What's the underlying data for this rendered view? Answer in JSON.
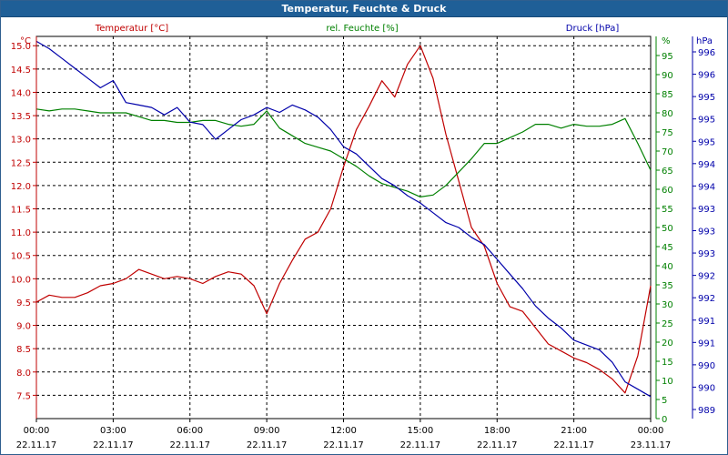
{
  "window": {
    "title": "Temperatur, Feuchte & Druck"
  },
  "chart_data": {
    "type": "line",
    "title": "Temperatur, Feuchte & Druck",
    "grid": true,
    "x": {
      "range": [
        "00:00",
        "24:00"
      ],
      "ticks": [
        {
          "time": "00:00",
          "date": "22.11.17"
        },
        {
          "time": "03:00",
          "date": "22.11.17"
        },
        {
          "time": "06:00",
          "date": "22.11.17"
        },
        {
          "time": "09:00",
          "date": "22.11.17"
        },
        {
          "time": "12:00",
          "date": "22.11.17"
        },
        {
          "time": "15:00",
          "date": "22.11.17"
        },
        {
          "time": "18:00",
          "date": "22.11.17"
        },
        {
          "time": "21:00",
          "date": "22.11.17"
        },
        {
          "time": "00:00",
          "date": "23.11.17"
        }
      ]
    },
    "axes": {
      "temp": {
        "label": "Temperatur [°C]",
        "unit": "°C",
        "color": "#c00000",
        "ylim": [
          7.0,
          15.2
        ],
        "ticks": [
          "15.0",
          "14.5",
          "14.0",
          "13.5",
          "13.0",
          "12.5",
          "12.0",
          "11.5",
          "11.0",
          "10.5",
          "10.0",
          "9.5",
          "9.0",
          "8.5",
          "8.0",
          "7.5"
        ]
      },
      "hum": {
        "label": "rel. Feuchte [%]",
        "unit": "%",
        "color": "#008000",
        "ylim": [
          0,
          100
        ],
        "ticks": [
          "95",
          "90",
          "85",
          "80",
          "75",
          "70",
          "65",
          "60",
          "55",
          "50",
          "45",
          "40",
          "35",
          "30",
          "25",
          "20",
          "15",
          "10",
          "5",
          "0"
        ]
      },
      "press": {
        "label": "Druck [hPa]",
        "unit": "hPa",
        "color": "#0000aa",
        "ylim": [
          988.8,
          996.6
        ],
        "ticks": [
          "996",
          "996",
          "995",
          "995",
          "995",
          "994",
          "994",
          "993",
          "993",
          "993",
          "992",
          "992",
          "991",
          "991",
          "990",
          "990",
          "989"
        ]
      }
    },
    "series": [
      {
        "name": "Temperatur [°C]",
        "axis": "temp",
        "color": "#c00000",
        "hours": [
          0,
          0.5,
          1,
          1.5,
          2,
          2.5,
          3,
          3.5,
          4,
          4.5,
          5,
          5.5,
          6,
          6.5,
          7,
          7.5,
          8,
          8.5,
          9,
          9.5,
          10,
          10.5,
          11,
          11.5,
          12,
          12.5,
          13,
          13.5,
          14,
          14.5,
          15,
          15.5,
          16,
          16.5,
          17,
          17.5,
          18,
          18.5,
          19,
          19.5,
          20,
          20.5,
          21,
          21.5,
          22,
          22.5,
          23,
          23.5,
          24
        ],
        "values": [
          9.5,
          9.65,
          9.6,
          9.6,
          9.7,
          9.85,
          9.9,
          10.0,
          10.2,
          10.1,
          10.0,
          10.05,
          10.0,
          9.9,
          10.05,
          10.15,
          10.1,
          9.85,
          9.25,
          9.9,
          10.4,
          10.85,
          11.0,
          11.5,
          12.4,
          13.2,
          13.7,
          14.25,
          13.9,
          14.6,
          15.0,
          14.3,
          13.1,
          12.1,
          11.1,
          10.7,
          9.9,
          9.4,
          9.3,
          8.95,
          8.6,
          8.45,
          8.3,
          8.2,
          8.05,
          7.85,
          7.55,
          8.35,
          9.85
        ]
      },
      {
        "name": "rel. Feuchte [%]",
        "axis": "hum",
        "color": "#008000",
        "hours": [
          0,
          0.5,
          1,
          1.5,
          2,
          2.5,
          3,
          3.5,
          4,
          4.5,
          5,
          5.5,
          6,
          6.5,
          7,
          7.5,
          8,
          8.5,
          9,
          9.5,
          10,
          10.5,
          11,
          11.5,
          12,
          12.5,
          13,
          13.5,
          14,
          14.5,
          15,
          15.5,
          16,
          16.5,
          17,
          17.5,
          18,
          18.5,
          19,
          19.5,
          20,
          20.5,
          21,
          21.5,
          22,
          22.5,
          23,
          23.5,
          24
        ],
        "values": [
          81,
          80.5,
          81,
          81,
          80.5,
          80,
          80,
          80,
          79,
          78,
          78,
          77.5,
          77.5,
          78,
          78,
          77,
          76.5,
          77,
          80.5,
          76,
          74,
          72,
          71,
          70,
          68,
          66,
          63.5,
          61.5,
          60.5,
          59.5,
          58,
          58.5,
          61,
          64.5,
          68,
          72,
          72,
          73.5,
          75,
          77,
          77,
          76,
          77,
          76.5,
          76.5,
          77,
          78.5,
          72,
          65
        ]
      },
      {
        "name": "Druck [hPa]",
        "axis": "press",
        "color": "#0000aa",
        "hours": [
          0,
          0.5,
          1,
          1.5,
          2,
          2.5,
          3,
          3.5,
          4,
          4.5,
          5,
          5.5,
          6,
          6.5,
          7,
          7.5,
          8,
          8.5,
          9,
          9.5,
          10,
          10.5,
          11,
          11.5,
          12,
          12.5,
          13,
          13.5,
          14,
          14.5,
          15,
          15.5,
          16,
          16.5,
          17,
          17.5,
          18,
          18.5,
          19,
          19.5,
          20,
          20.5,
          21,
          21.5,
          22,
          22.5,
          23,
          23.5,
          24
        ],
        "values": [
          996.5,
          996.35,
          996.15,
          995.95,
          995.75,
          995.55,
          995.7,
          995.25,
          995.2,
          995.15,
          995.0,
          995.15,
          994.85,
          994.8,
          994.5,
          994.7,
          994.9,
          995.0,
          995.15,
          995.05,
          995.2,
          995.1,
          994.95,
          994.7,
          994.35,
          994.2,
          993.95,
          993.7,
          993.55,
          993.35,
          993.2,
          993.0,
          992.8,
          992.7,
          992.5,
          992.35,
          992.05,
          991.75,
          991.45,
          991.1,
          990.85,
          990.65,
          990.4,
          990.3,
          990.2,
          989.95,
          989.55,
          989.4,
          989.25
        ]
      }
    ]
  }
}
